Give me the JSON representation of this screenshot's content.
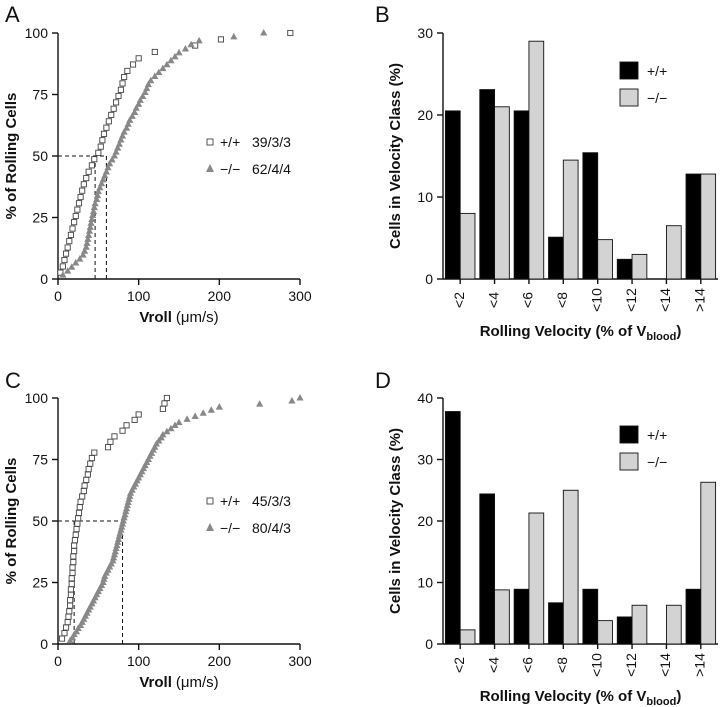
{
  "chart_data": [
    {
      "panel": "A",
      "type": "scatter",
      "xlabel_main": "Vroll",
      "xlabel_unit": "(μm/s)",
      "ylabel": "% of Rolling Cells",
      "xlim": [
        0,
        300
      ],
      "ylim": [
        0,
        100
      ],
      "xticks": [
        0,
        100,
        200,
        300
      ],
      "yticks": [
        0,
        25,
        50,
        75,
        100
      ],
      "median_line": 50,
      "series": [
        {
          "key": "wt",
          "marker": "open-square",
          "sign": "+/+",
          "count": "39/3/3",
          "median": 46,
          "x": [
            3,
            6,
            8,
            10,
            12,
            14,
            16,
            18,
            20,
            22,
            24,
            26,
            28,
            30,
            32,
            35,
            38,
            42,
            45,
            50,
            53,
            55,
            57,
            60,
            63,
            66,
            69,
            72,
            75,
            78,
            80,
            82,
            86,
            93,
            100,
            120,
            170,
            202,
            288
          ],
          "y": [
            2.6,
            5.1,
            7.7,
            10.3,
            12.8,
            15.4,
            17.9,
            20.5,
            23.1,
            25.6,
            28.2,
            30.8,
            33.3,
            35.9,
            38.5,
            41,
            43.6,
            46.2,
            48.7,
            51.3,
            53.8,
            56.4,
            59,
            61.5,
            64.1,
            66.7,
            69.2,
            71.8,
            74.4,
            76.9,
            79.5,
            82.1,
            84.6,
            87.2,
            89.7,
            92.3,
            94.9,
            97.4,
            100
          ]
        },
        {
          "key": "ko",
          "marker": "filled-triangle",
          "sign": "−/−",
          "count": "62/4/4",
          "median": 60,
          "x": [
            6,
            12,
            17,
            22,
            27,
            31,
            33,
            35,
            36,
            37,
            38,
            39,
            40,
            41,
            42,
            43,
            44,
            45,
            46,
            48,
            49,
            50,
            52,
            54,
            56,
            58,
            60,
            62,
            64,
            67,
            70,
            72,
            74,
            76,
            78,
            80,
            82,
            85,
            87,
            89,
            92,
            95,
            97,
            100,
            102,
            105,
            108,
            110,
            112,
            115,
            120,
            125,
            130,
            135,
            140,
            145,
            150,
            158,
            165,
            175,
            218,
            255
          ],
          "y": [
            1.6,
            3.2,
            4.8,
            6.5,
            8.1,
            9.7,
            11.3,
            12.9,
            14.5,
            16.1,
            17.7,
            19.4,
            21,
            22.6,
            24.2,
            25.8,
            27.4,
            29,
            30.6,
            32.3,
            33.9,
            35.5,
            37.1,
            38.7,
            40.3,
            41.9,
            43.5,
            45.2,
            46.8,
            48.4,
            50,
            51.6,
            53.2,
            54.8,
            56.5,
            58.1,
            59.7,
            61.3,
            62.9,
            64.5,
            66.1,
            67.7,
            69.4,
            71,
            72.6,
            74.2,
            75.8,
            77.4,
            79,
            80.6,
            82.3,
            83.9,
            85.5,
            87.1,
            88.7,
            90.3,
            91.9,
            93.5,
            95.2,
            96.8,
            98.4,
            100
          ]
        }
      ]
    },
    {
      "panel": "B",
      "type": "bar",
      "ylabel": "Cells in Velocity Class (%)",
      "xlabel_main": "Rolling Velocity (% of V",
      "xlabel_sub": "blood",
      "xlabel_end": ")",
      "categories": [
        "<2",
        "<4",
        "<6",
        "<8",
        "<10",
        "<12",
        "<14",
        ">14"
      ],
      "ylim": [
        0,
        30
      ],
      "yticks": [
        0,
        10,
        20,
        30
      ],
      "series": [
        {
          "name": "+/+",
          "color": "#000000",
          "values": [
            20.5,
            23.1,
            20.5,
            5.1,
            15.4,
            2.4,
            0,
            12.8
          ]
        },
        {
          "name": "−/−",
          "color": "#d3d3d3",
          "values": [
            8,
            21,
            29,
            14.5,
            4.8,
            3,
            6.5,
            12.8
          ]
        }
      ]
    },
    {
      "panel": "C",
      "type": "scatter",
      "xlabel_main": "Vroll",
      "xlabel_unit": "(μm/s)",
      "ylabel": "% of Rolling Cells",
      "xlim": [
        0,
        300
      ],
      "ylim": [
        0,
        100
      ],
      "xticks": [
        0,
        100,
        200,
        300
      ],
      "yticks": [
        0,
        25,
        50,
        75,
        100
      ],
      "median_line": 50,
      "series": [
        {
          "key": "wt",
          "marker": "open-square",
          "sign": "+/+",
          "count": "45/3/3",
          "median": 20,
          "x": [
            5,
            8,
            10,
            12,
            13,
            14,
            15,
            15,
            16,
            16,
            17,
            17,
            18,
            18,
            19,
            19,
            20,
            20,
            21,
            22,
            23,
            24,
            25,
            26,
            27,
            28,
            30,
            32,
            33,
            35,
            37,
            38,
            40,
            42,
            45,
            62,
            65,
            70,
            80,
            85,
            95,
            100,
            130,
            132,
            135
          ],
          "y": [
            2.2,
            4.4,
            6.7,
            8.9,
            11.1,
            13.3,
            15.6,
            17.8,
            20,
            22.2,
            24.4,
            26.7,
            28.9,
            31.1,
            33.3,
            35.6,
            37.8,
            40,
            42.2,
            44.4,
            46.7,
            48.9,
            51.1,
            53.3,
            55.6,
            57.8,
            60,
            62.2,
            64.4,
            66.7,
            68.9,
            71.1,
            73.3,
            75.6,
            77.8,
            80,
            82.2,
            84.4,
            86.7,
            88.9,
            91.1,
            93.3,
            95.6,
            97.8,
            100
          ]
        },
        {
          "key": "ko",
          "marker": "filled-triangle",
          "sign": "−/−",
          "count": "80/4/3",
          "median": 80,
          "x": [
            15,
            18,
            20,
            23,
            25,
            28,
            30,
            32,
            34,
            36,
            38,
            40,
            42,
            44,
            46,
            48,
            50,
            52,
            54,
            56,
            57,
            58,
            60,
            62,
            64,
            66,
            68,
            69,
            70,
            71,
            72,
            73,
            74,
            75,
            76,
            77,
            78,
            79,
            80,
            81,
            82,
            83,
            84,
            85,
            86,
            87,
            88,
            89,
            90,
            92,
            94,
            96,
            98,
            100,
            102,
            104,
            106,
            108,
            110,
            112,
            114,
            116,
            118,
            120,
            122,
            125,
            128,
            130,
            135,
            140,
            145,
            150,
            160,
            170,
            180,
            190,
            200,
            250,
            290,
            300
          ],
          "y": [
            1.3,
            2.5,
            3.8,
            5,
            6.3,
            7.5,
            8.8,
            10,
            11.3,
            12.5,
            13.8,
            15,
            16.3,
            17.5,
            18.8,
            20,
            21.3,
            22.5,
            23.8,
            25,
            26.3,
            27.5,
            28.8,
            30,
            31.3,
            32.5,
            33.8,
            35,
            36.3,
            37.5,
            38.8,
            40,
            41.3,
            42.5,
            43.8,
            45,
            46.3,
            47.5,
            48.8,
            50,
            51.3,
            52.5,
            53.8,
            55,
            56.3,
            57.5,
            58.8,
            60,
            61.3,
            62.5,
            63.8,
            65,
            66.3,
            67.5,
            68.8,
            70,
            71.3,
            72.5,
            73.8,
            75,
            76.3,
            77.5,
            78.8,
            80,
            81.3,
            82.5,
            83.8,
            85,
            86.3,
            87.5,
            88.8,
            90,
            91.3,
            92.5,
            93.8,
            95,
            96.3,
            97.5,
            98.8,
            100
          ]
        }
      ]
    },
    {
      "panel": "D",
      "type": "bar",
      "ylabel": "Cells in Velocity Class (%)",
      "xlabel_main": "Rolling Velocity (% of V",
      "xlabel_sub": "blood",
      "xlabel_end": ")",
      "categories": [
        "<2",
        "<4",
        "<6",
        "<8",
        "<10",
        "<12",
        "<14",
        ">14"
      ],
      "ylim": [
        0,
        40
      ],
      "yticks": [
        0,
        10,
        20,
        30,
        40
      ],
      "series": [
        {
          "name": "+/+",
          "color": "#000000",
          "values": [
            37.8,
            24.4,
            8.9,
            6.7,
            8.9,
            4.4,
            0,
            8.9
          ]
        },
        {
          "name": "−/−",
          "color": "#d3d3d3",
          "values": [
            2.3,
            8.8,
            21.3,
            25,
            3.8,
            6.3,
            6.3,
            26.3
          ]
        }
      ]
    }
  ]
}
